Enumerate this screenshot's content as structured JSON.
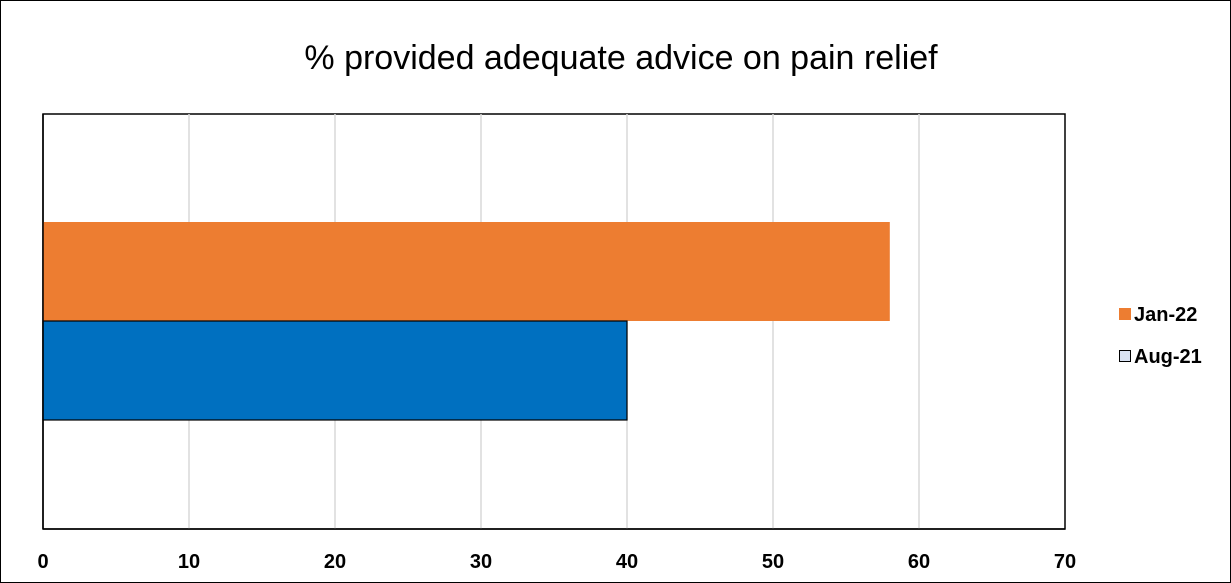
{
  "chart_data": {
    "type": "bar",
    "orientation": "horizontal",
    "title": "% provided adequate advice on pain relief",
    "xlabel": "",
    "ylabel": "",
    "xlim": [
      0,
      70
    ],
    "x_ticks": [
      0,
      10,
      20,
      30,
      40,
      50,
      60,
      70
    ],
    "categories": [
      ""
    ],
    "series": [
      {
        "name": "Jan-22",
        "values": [
          58
        ],
        "color": "#ED7D31"
      },
      {
        "name": "Aug-21",
        "values": [
          40
        ],
        "color": "#0070C0"
      }
    ],
    "grid": "vertical",
    "legend_position": "right"
  }
}
